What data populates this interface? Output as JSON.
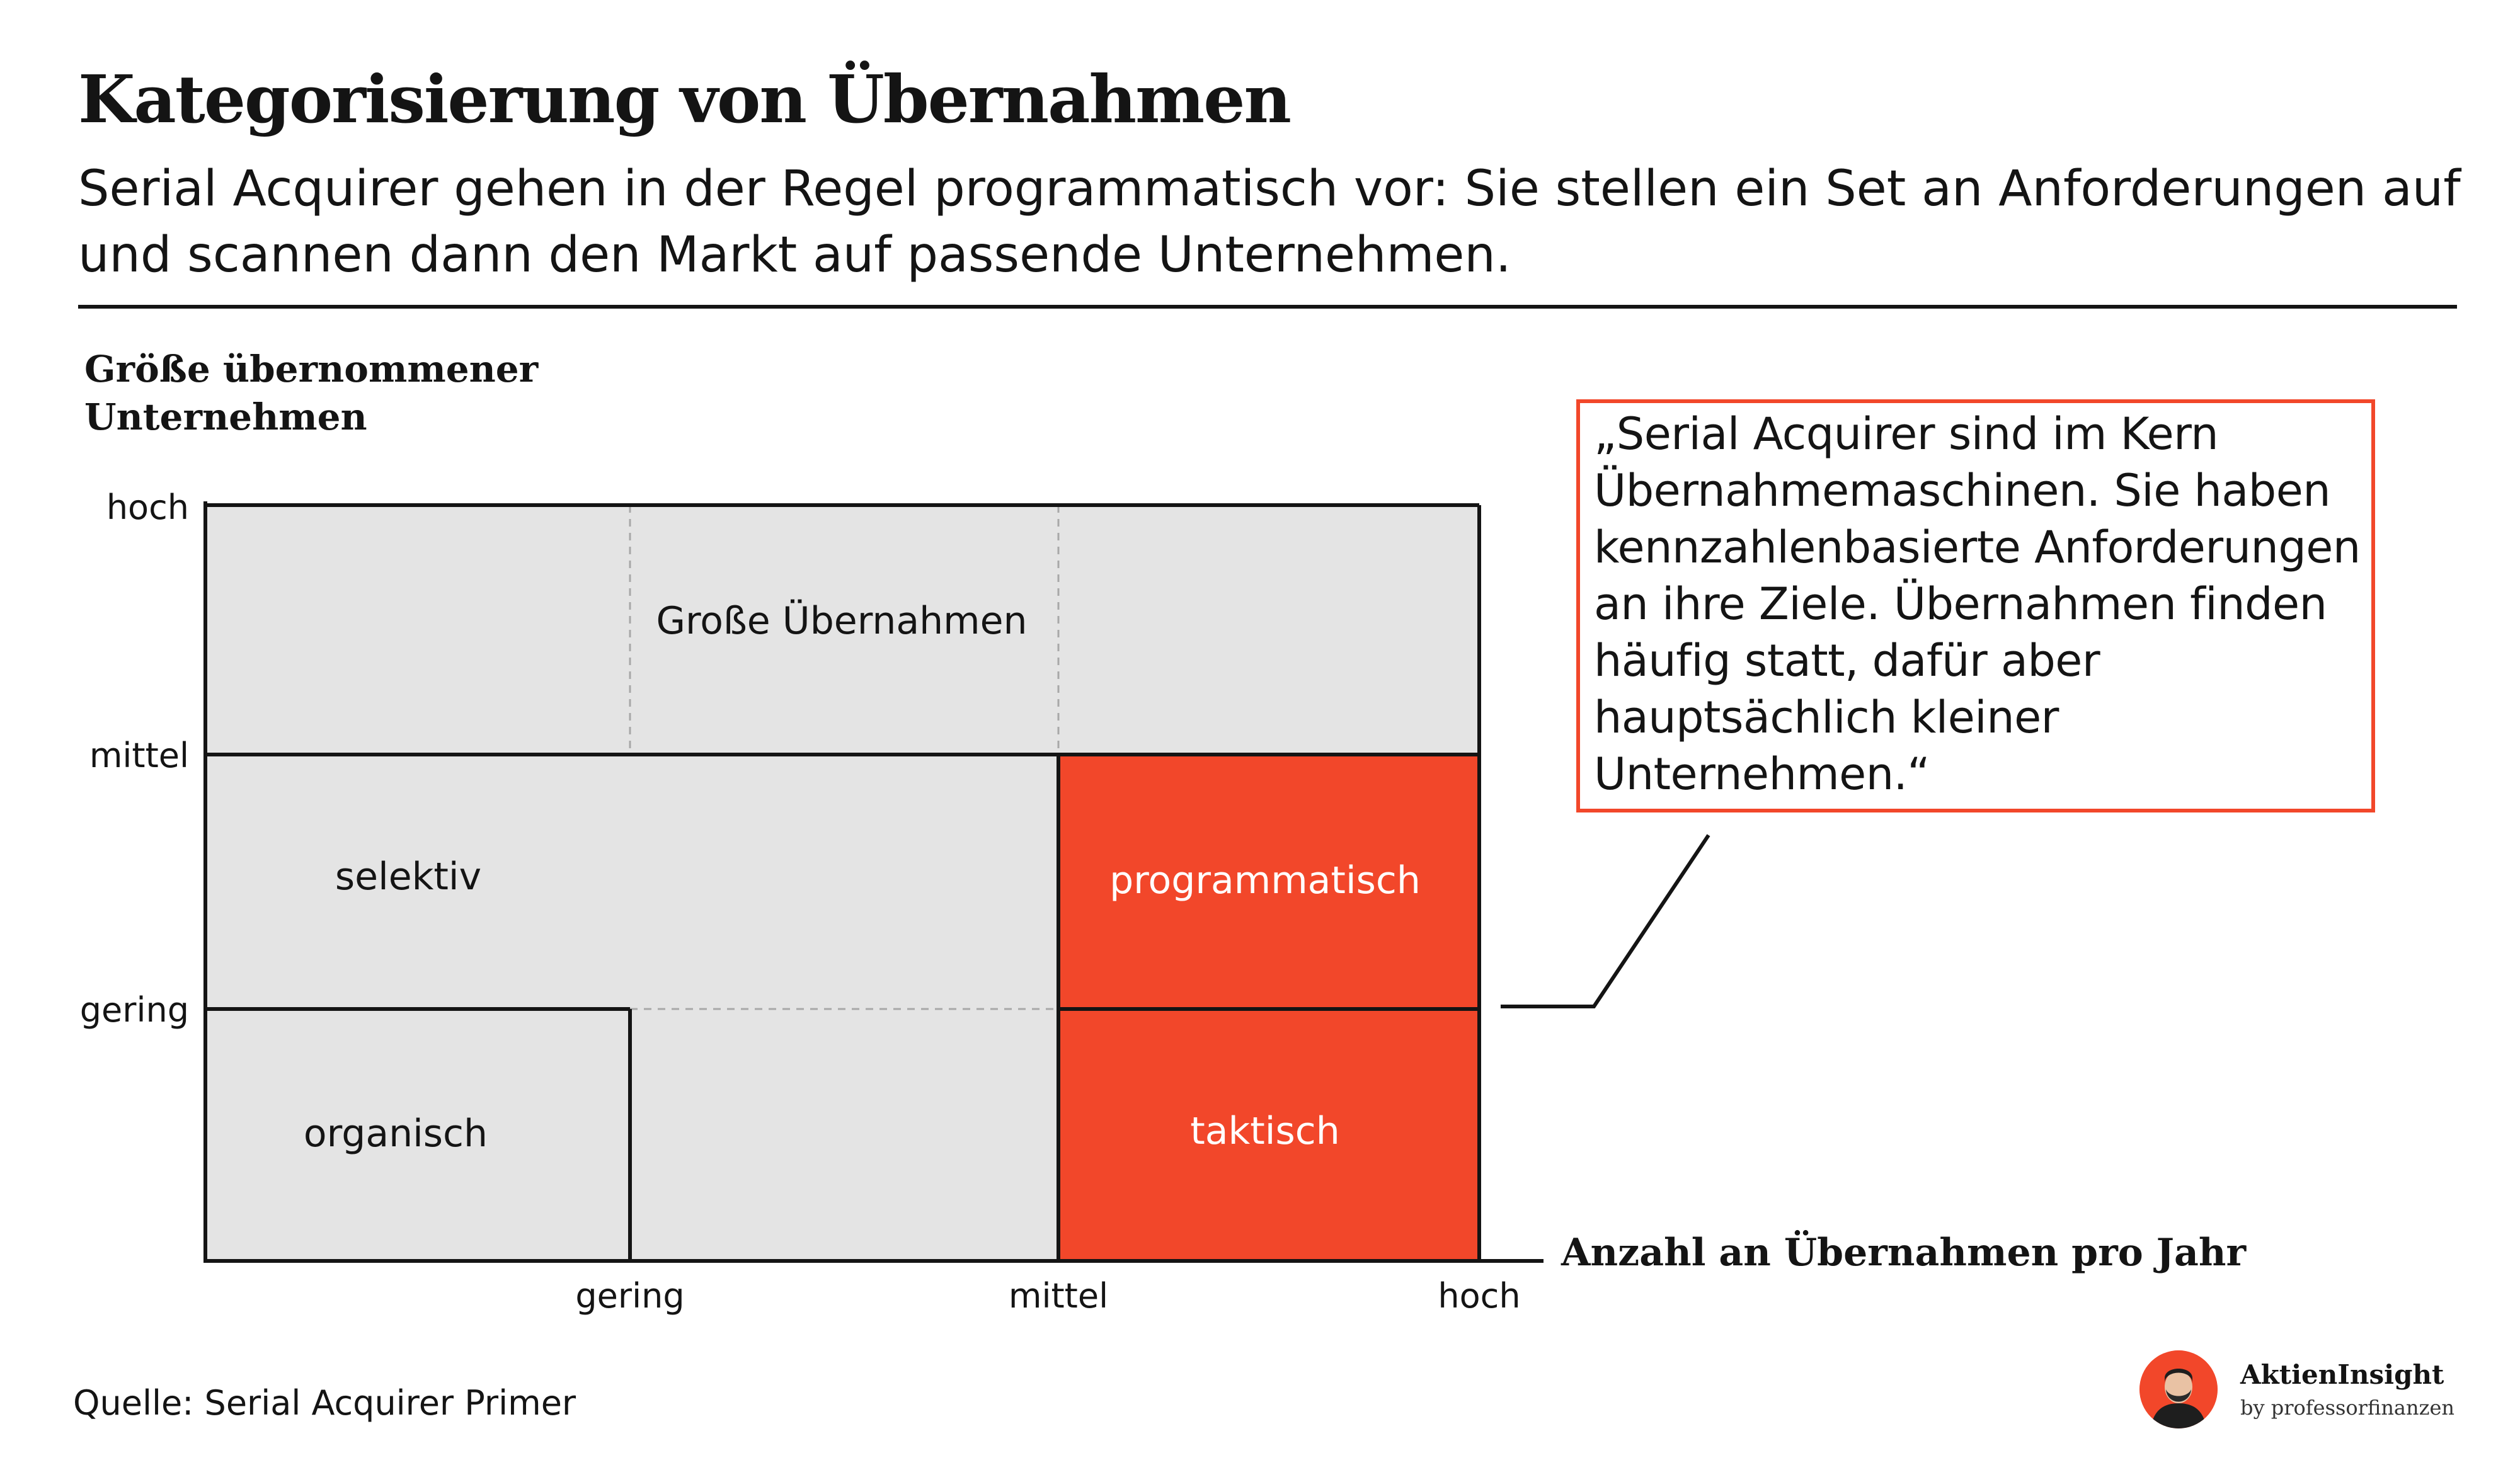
{
  "header": {
    "title": "Kategorisierung von Übernahmen",
    "subtitle": "Serial Acquirer gehen in der Regel programmatisch vor: Sie stellen ein Set an Anforderungen auf und scannen dann den Markt auf passende Unternehmen."
  },
  "axes": {
    "y_title": "Größe übernommener Unternehmen",
    "x_title": "Anzahl an Übernahmen pro Jahr",
    "y_ticks": [
      "hoch",
      "mittel",
      "gering"
    ],
    "x_ticks": [
      "gering",
      "mittel",
      "hoch"
    ]
  },
  "cells": {
    "gross": "Große Übernahmen",
    "selektiv": "selektiv",
    "organisch": "organisch",
    "programmatisch": "programmatisch",
    "taktisch": "taktisch"
  },
  "callout": {
    "quote": "„Serial Acquirer sind im Kern Übernahmemaschinen. Sie haben kennzahlenbasierte Anforderungen an ihre Ziele. Übernahmen finden häufig statt, dafür aber hauptsächlich kleiner Unternehmen.“"
  },
  "footer": {
    "source": "Quelle: Serial Acquirer Primer",
    "brand_name": "AktienInsight",
    "brand_by": "by professorfinanzen"
  },
  "colors": {
    "accent": "#f2472a",
    "cell_grey": "#e4e4e4",
    "ink": "#141414"
  },
  "icons": {
    "brand_avatar": "person-avatar-icon"
  }
}
